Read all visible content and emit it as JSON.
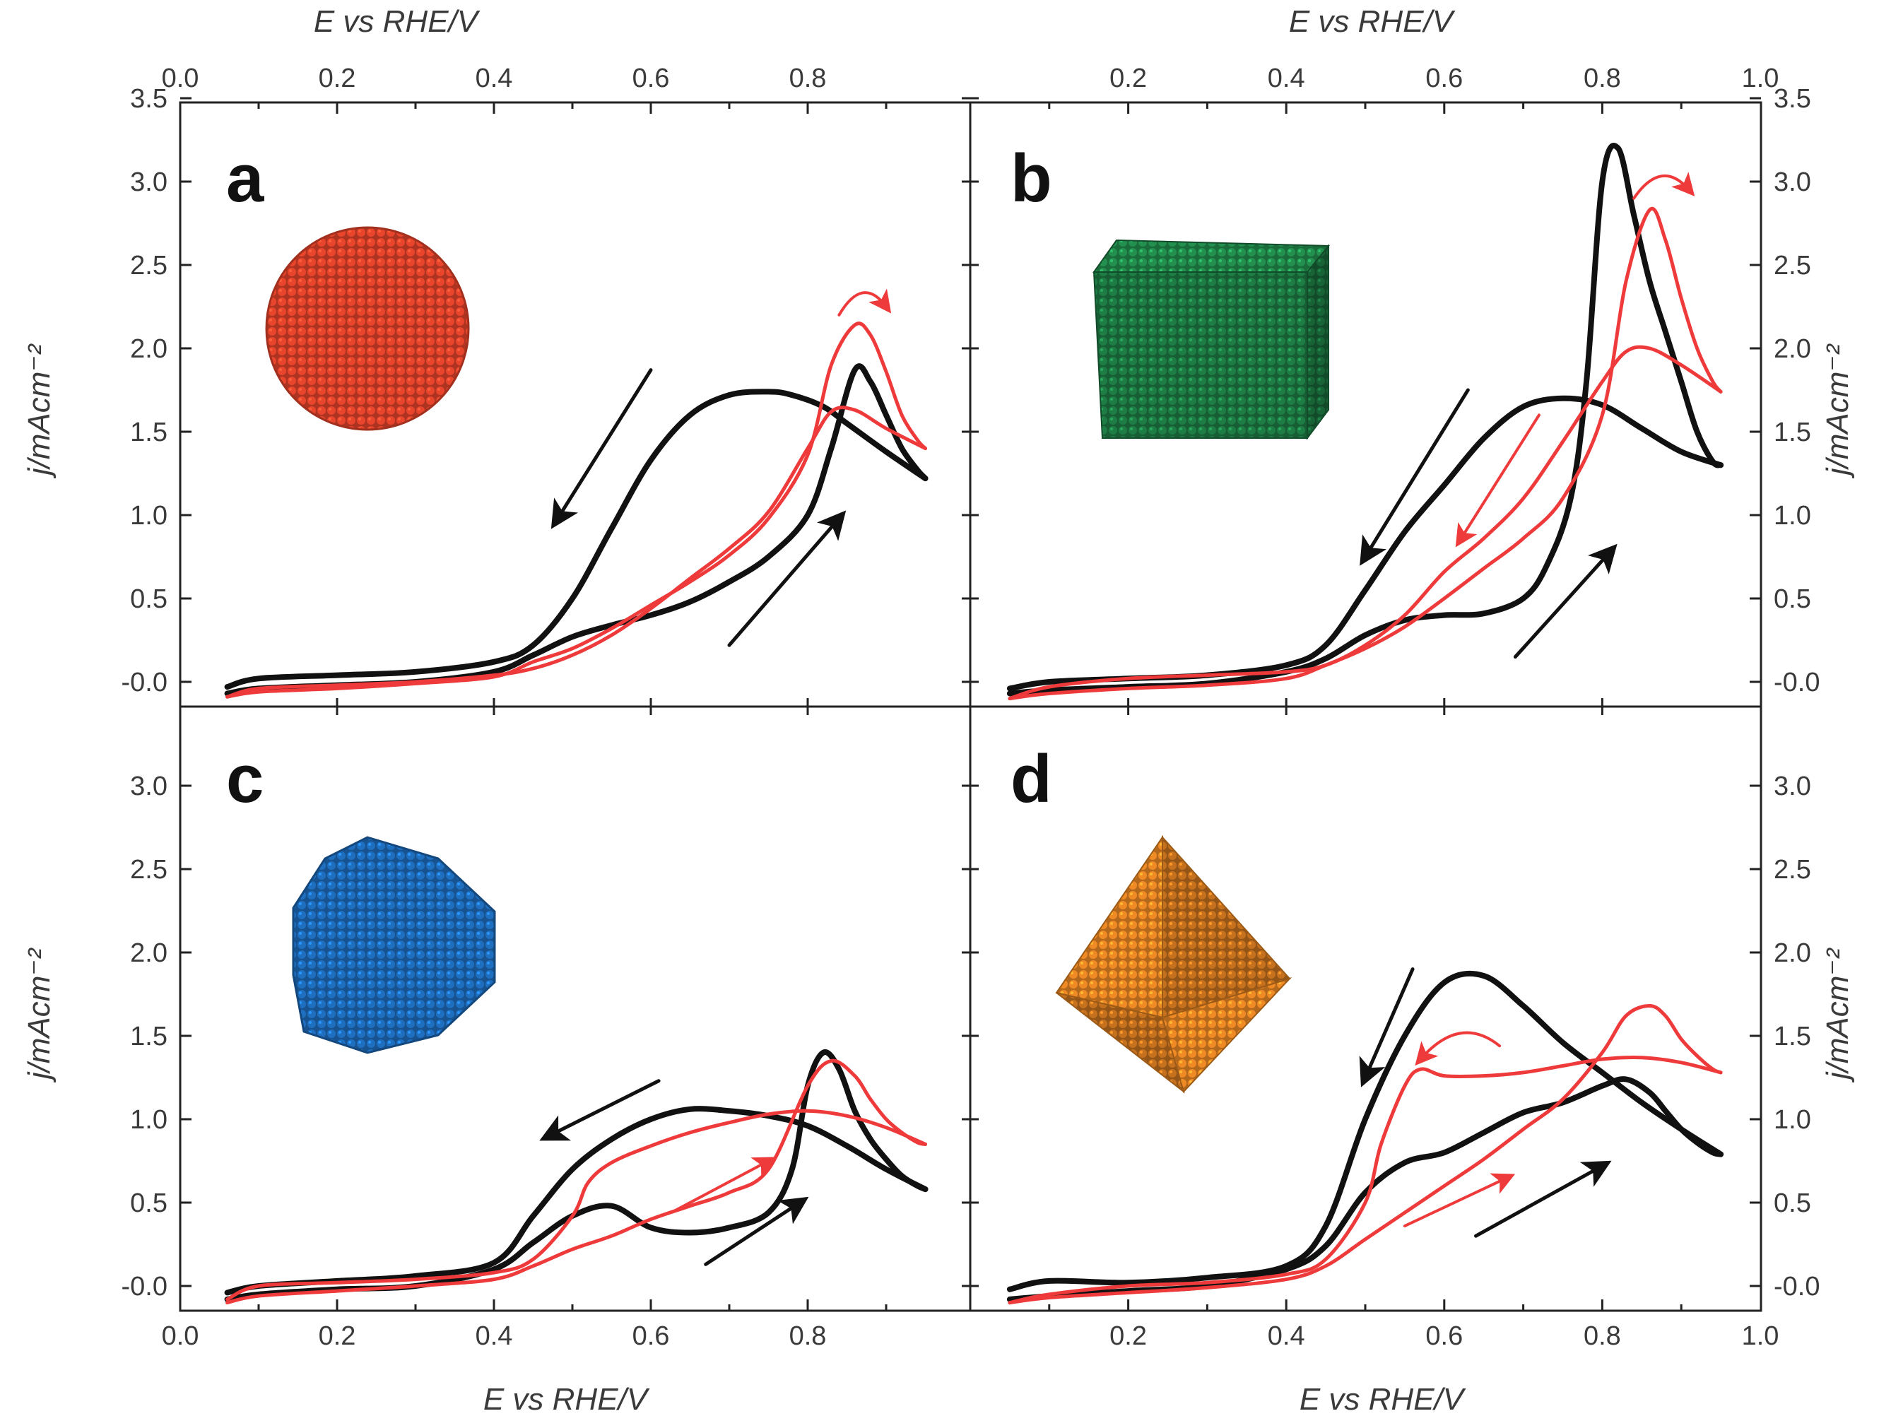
{
  "chart_data": {
    "type": "line",
    "title": "",
    "axes": {
      "xlabel_top": "E vs RHE/V",
      "xlabel_bottom": "E vs RHE/V",
      "ylabel_left": "j/mAcm⁻²",
      "ylabel_right": "j/mAcm⁻²",
      "left_column_xlim": [
        0.0,
        1.0
      ],
      "right_column_xlim": [
        0.0,
        1.0
      ],
      "ylim": [
        -0.15,
        3.5
      ],
      "top_x_ticks_left": [
        "0.0",
        "0.2",
        "0.4",
        "0.6",
        "0.8"
      ],
      "top_x_ticks_right": [
        "0.2",
        "0.4",
        "0.6",
        "0.8",
        "1.0"
      ],
      "bottom_x_ticks_left": [
        "0.0",
        "0.2",
        "0.4",
        "0.6",
        "0.8"
      ],
      "bottom_x_ticks_right": [
        "0.2",
        "0.4",
        "0.6",
        "0.8",
        "1.0"
      ],
      "y_ticks_upper": [
        "-0.0",
        "0.5",
        "1.0",
        "1.5",
        "2.0",
        "2.5",
        "3.0",
        "3.5"
      ],
      "y_ticks_lower": [
        "-0.0",
        "0.5",
        "1.0",
        "1.5",
        "2.0",
        "2.5",
        "3.0"
      ]
    },
    "colors": {
      "black": "#111111",
      "red": "#ee3a3a"
    },
    "panels": [
      {
        "label": "a",
        "shape": "spherical nanoparticle",
        "shape_color": "#e8452c",
        "series": [
          {
            "name": "black forward",
            "color": "black",
            "x": [
              0.06,
              0.1,
              0.2,
              0.3,
              0.4,
              0.45,
              0.5,
              0.55,
              0.6,
              0.65,
              0.7,
              0.75,
              0.8,
              0.83,
              0.86,
              0.88,
              0.9,
              0.92,
              0.94,
              0.95
            ],
            "y": [
              -0.07,
              -0.04,
              -0.02,
              0.0,
              0.06,
              0.16,
              0.27,
              0.34,
              0.4,
              0.48,
              0.6,
              0.75,
              1.0,
              1.4,
              1.87,
              1.8,
              1.6,
              1.4,
              1.27,
              1.22
            ]
          },
          {
            "name": "black backward",
            "color": "black",
            "x": [
              0.95,
              0.9,
              0.85,
              0.82,
              0.78,
              0.75,
              0.7,
              0.65,
              0.6,
              0.55,
              0.5,
              0.45,
              0.4,
              0.3,
              0.2,
              0.1,
              0.06
            ],
            "y": [
              1.22,
              1.38,
              1.55,
              1.65,
              1.72,
              1.74,
              1.72,
              1.6,
              1.33,
              0.92,
              0.5,
              0.22,
              0.12,
              0.06,
              0.04,
              0.02,
              -0.03
            ]
          },
          {
            "name": "red forward",
            "color": "red",
            "x": [
              0.06,
              0.1,
              0.2,
              0.3,
              0.4,
              0.45,
              0.5,
              0.55,
              0.6,
              0.65,
              0.7,
              0.75,
              0.8,
              0.83,
              0.86,
              0.88,
              0.9,
              0.92,
              0.94,
              0.95
            ],
            "y": [
              -0.09,
              -0.06,
              -0.04,
              -0.01,
              0.03,
              0.12,
              0.2,
              0.32,
              0.46,
              0.6,
              0.76,
              0.98,
              1.36,
              1.9,
              2.14,
              2.08,
              1.86,
              1.6,
              1.45,
              1.4
            ]
          },
          {
            "name": "red backward",
            "color": "red",
            "x": [
              0.95,
              0.9,
              0.86,
              0.83,
              0.8,
              0.75,
              0.7,
              0.65,
              0.6,
              0.55,
              0.5,
              0.45,
              0.4,
              0.3,
              0.2,
              0.1,
              0.06
            ],
            "y": [
              1.4,
              1.52,
              1.63,
              1.62,
              1.4,
              1.02,
              0.8,
              0.62,
              0.44,
              0.28,
              0.16,
              0.08,
              0.04,
              0.0,
              -0.02,
              -0.04,
              -0.09
            ]
          }
        ],
        "annotations": [
          {
            "type": "arrow",
            "color": "black",
            "from": [
              0.6,
              1.87
            ],
            "to": [
              0.48,
              0.97
            ]
          },
          {
            "type": "arrow",
            "color": "black",
            "from": [
              0.7,
              0.22
            ],
            "to": [
              0.84,
              0.98
            ]
          },
          {
            "type": "curved-arrow",
            "color": "red",
            "from": [
              0.84,
              2.2
            ],
            "to": [
              0.9,
              2.25
            ]
          }
        ]
      },
      {
        "label": "b",
        "shape": "cubic nanoparticle",
        "shape_color": "#1e7d45",
        "series": [
          {
            "name": "black forward",
            "color": "black",
            "x": [
              0.05,
              0.1,
              0.2,
              0.3,
              0.4,
              0.45,
              0.5,
              0.55,
              0.6,
              0.65,
              0.7,
              0.73,
              0.76,
              0.78,
              0.8,
              0.82,
              0.84,
              0.86,
              0.88,
              0.9,
              0.92,
              0.94,
              0.95
            ],
            "y": [
              -0.07,
              -0.05,
              -0.03,
              -0.01,
              0.06,
              0.14,
              0.28,
              0.37,
              0.4,
              0.41,
              0.5,
              0.7,
              1.1,
              1.8,
              3.0,
              3.2,
              2.8,
              2.4,
              2.1,
              1.8,
              1.5,
              1.32,
              1.3
            ]
          },
          {
            "name": "black backward",
            "color": "black",
            "x": [
              0.95,
              0.9,
              0.85,
              0.8,
              0.75,
              0.7,
              0.65,
              0.6,
              0.55,
              0.5,
              0.45,
              0.4,
              0.3,
              0.2,
              0.1,
              0.05
            ],
            "y": [
              1.3,
              1.38,
              1.52,
              1.66,
              1.7,
              1.65,
              1.46,
              1.18,
              0.9,
              0.55,
              0.22,
              0.1,
              0.04,
              0.02,
              0.0,
              -0.04
            ]
          },
          {
            "name": "red forward",
            "color": "red",
            "x": [
              0.05,
              0.1,
              0.2,
              0.3,
              0.4,
              0.45,
              0.5,
              0.55,
              0.6,
              0.65,
              0.7,
              0.75,
              0.8,
              0.83,
              0.86,
              0.88,
              0.9,
              0.92,
              0.94,
              0.95
            ],
            "y": [
              -0.1,
              -0.07,
              -0.04,
              -0.02,
              0.02,
              0.1,
              0.2,
              0.33,
              0.5,
              0.68,
              0.86,
              1.1,
              1.6,
              2.4,
              2.83,
              2.65,
              2.3,
              2.0,
              1.8,
              1.74
            ]
          },
          {
            "name": "red backward",
            "color": "red",
            "x": [
              0.95,
              0.9,
              0.86,
              0.83,
              0.8,
              0.75,
              0.7,
              0.65,
              0.6,
              0.55,
              0.5,
              0.45,
              0.4,
              0.3,
              0.2,
              0.1,
              0.05
            ],
            "y": [
              1.74,
              1.9,
              2.0,
              1.98,
              1.8,
              1.44,
              1.1,
              0.86,
              0.66,
              0.4,
              0.22,
              0.1,
              0.06,
              0.04,
              0.02,
              -0.03,
              -0.1
            ]
          }
        ],
        "annotations": [
          {
            "type": "arrow",
            "color": "black",
            "from": [
              0.63,
              1.75
            ],
            "to": [
              0.5,
              0.75
            ]
          },
          {
            "type": "arrow",
            "color": "black",
            "from": [
              0.69,
              0.15
            ],
            "to": [
              0.81,
              0.78
            ]
          },
          {
            "type": "arrow",
            "color": "red",
            "from": [
              0.72,
              1.6
            ],
            "to": [
              0.62,
              0.85
            ]
          },
          {
            "type": "curved-arrow",
            "color": "red",
            "from": [
              0.84,
              2.9
            ],
            "to": [
              0.91,
              2.95
            ]
          }
        ]
      },
      {
        "label": "c",
        "shape": "cuboctahedral nanoparticle",
        "shape_color": "#1f6fc0",
        "series": [
          {
            "name": "black forward",
            "color": "black",
            "x": [
              0.06,
              0.1,
              0.2,
              0.3,
              0.4,
              0.45,
              0.5,
              0.55,
              0.6,
              0.65,
              0.7,
              0.75,
              0.78,
              0.8,
              0.82,
              0.84,
              0.86,
              0.88,
              0.9,
              0.92,
              0.94,
              0.95
            ],
            "y": [
              -0.08,
              -0.05,
              -0.02,
              0.0,
              0.1,
              0.26,
              0.42,
              0.48,
              0.35,
              0.32,
              0.35,
              0.44,
              0.7,
              1.2,
              1.4,
              1.3,
              1.05,
              0.88,
              0.76,
              0.66,
              0.6,
              0.58
            ]
          },
          {
            "name": "black backward",
            "color": "black",
            "x": [
              0.95,
              0.9,
              0.85,
              0.8,
              0.75,
              0.7,
              0.65,
              0.6,
              0.55,
              0.5,
              0.45,
              0.4,
              0.3,
              0.2,
              0.1,
              0.06
            ],
            "y": [
              0.58,
              0.7,
              0.84,
              0.96,
              1.02,
              1.05,
              1.06,
              1.0,
              0.88,
              0.7,
              0.42,
              0.14,
              0.06,
              0.03,
              0.0,
              -0.04
            ]
          },
          {
            "name": "red forward",
            "color": "red",
            "x": [
              0.06,
              0.1,
              0.2,
              0.3,
              0.4,
              0.45,
              0.5,
              0.55,
              0.6,
              0.65,
              0.7,
              0.75,
              0.8,
              0.83,
              0.86,
              0.88,
              0.9,
              0.92,
              0.94,
              0.95
            ],
            "y": [
              -0.1,
              -0.06,
              -0.03,
              0.0,
              0.04,
              0.12,
              0.22,
              0.3,
              0.4,
              0.48,
              0.56,
              0.7,
              1.2,
              1.35,
              1.26,
              1.12,
              1.0,
              0.92,
              0.86,
              0.85
            ]
          },
          {
            "name": "red backward",
            "color": "red",
            "x": [
              0.95,
              0.9,
              0.85,
              0.8,
              0.75,
              0.7,
              0.65,
              0.6,
              0.55,
              0.52,
              0.5,
              0.45,
              0.4,
              0.3,
              0.2,
              0.1,
              0.06
            ],
            "y": [
              0.85,
              0.95,
              1.02,
              1.05,
              1.03,
              0.98,
              0.92,
              0.84,
              0.74,
              0.62,
              0.42,
              0.16,
              0.08,
              0.04,
              0.02,
              0.0,
              -0.08
            ]
          }
        ],
        "annotations": [
          {
            "type": "arrow",
            "color": "black",
            "from": [
              0.61,
              1.23
            ],
            "to": [
              0.47,
              0.9
            ]
          },
          {
            "type": "arrow",
            "color": "black",
            "from": [
              0.67,
              0.13
            ],
            "to": [
              0.79,
              0.5
            ]
          },
          {
            "type": "arrow",
            "color": "red",
            "from": [
              0.63,
              0.45
            ],
            "to": [
              0.75,
              0.75
            ]
          }
        ]
      },
      {
        "label": "d",
        "shape": "octahedral nanoparticle",
        "shape_color": "#f08a24",
        "series": [
          {
            "name": "black forward",
            "color": "black",
            "x": [
              0.05,
              0.1,
              0.2,
              0.3,
              0.4,
              0.45,
              0.5,
              0.55,
              0.6,
              0.65,
              0.7,
              0.75,
              0.8,
              0.83,
              0.86,
              0.88,
              0.9,
              0.92,
              0.94,
              0.95
            ],
            "y": [
              -0.08,
              -0.06,
              -0.03,
              0.0,
              0.1,
              0.24,
              0.56,
              0.74,
              0.8,
              0.92,
              1.04,
              1.1,
              1.2,
              1.24,
              1.16,
              1.05,
              0.94,
              0.86,
              0.8,
              0.79
            ]
          },
          {
            "name": "black backward",
            "color": "black",
            "x": [
              0.95,
              0.9,
              0.85,
              0.8,
              0.75,
              0.7,
              0.65,
              0.6,
              0.55,
              0.5,
              0.45,
              0.4,
              0.3,
              0.2,
              0.1,
              0.05
            ],
            "y": [
              0.79,
              0.94,
              1.1,
              1.28,
              1.46,
              1.68,
              1.86,
              1.82,
              1.5,
              1.0,
              0.36,
              0.12,
              0.05,
              0.02,
              0.03,
              -0.02
            ]
          },
          {
            "name": "red forward",
            "color": "red",
            "x": [
              0.05,
              0.1,
              0.2,
              0.3,
              0.4,
              0.45,
              0.5,
              0.55,
              0.6,
              0.65,
              0.7,
              0.75,
              0.8,
              0.83,
              0.86,
              0.88,
              0.9,
              0.92,
              0.94,
              0.95
            ],
            "y": [
              -0.1,
              -0.07,
              -0.04,
              -0.01,
              0.04,
              0.12,
              0.28,
              0.44,
              0.6,
              0.76,
              0.94,
              1.12,
              1.4,
              1.62,
              1.68,
              1.62,
              1.48,
              1.38,
              1.3,
              1.28
            ]
          },
          {
            "name": "red backward",
            "color": "red",
            "x": [
              0.95,
              0.9,
              0.85,
              0.8,
              0.75,
              0.7,
              0.65,
              0.6,
              0.57,
              0.55,
              0.52,
              0.5,
              0.45,
              0.4,
              0.3,
              0.2,
              0.1,
              0.05
            ],
            "y": [
              1.28,
              1.34,
              1.37,
              1.36,
              1.32,
              1.28,
              1.26,
              1.26,
              1.3,
              1.2,
              0.85,
              0.5,
              0.16,
              0.07,
              0.02,
              0.0,
              -0.05,
              -0.1
            ]
          }
        ],
        "annotations": [
          {
            "type": "arrow",
            "color": "black",
            "from": [
              0.56,
              1.9
            ],
            "to": [
              0.5,
              1.25
            ]
          },
          {
            "type": "arrow",
            "color": "black",
            "from": [
              0.64,
              0.3
            ],
            "to": [
              0.8,
              0.72
            ]
          },
          {
            "type": "arrow",
            "color": "red",
            "from": [
              0.55,
              0.36
            ],
            "to": [
              0.68,
              0.65
            ]
          },
          {
            "type": "curved-arrow",
            "color": "red",
            "from": [
              0.67,
              1.44
            ],
            "to": [
              0.57,
              1.36
            ]
          }
        ]
      }
    ]
  }
}
